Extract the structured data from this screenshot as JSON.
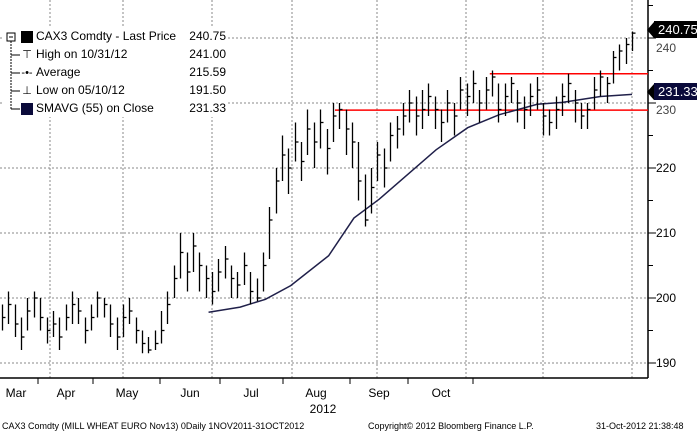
{
  "legend": [
    {
      "label": "CAX3 Comdty - Last Price",
      "value": "240.75",
      "icon": "black-square-icon"
    },
    {
      "label": "High on 10/31/12",
      "value": "241.00",
      "icon": "high-marker-icon"
    },
    {
      "label": "Average",
      "value": "215.59",
      "icon": "average-marker-icon"
    },
    {
      "label": "Low on 05/10/12",
      "value": "191.50",
      "icon": "low-marker-icon"
    },
    {
      "label": "SMAVG (55) on Close",
      "value": "231.33",
      "icon": "navy-square-icon"
    }
  ],
  "badges": {
    "last": "240.75",
    "sma": "231.33"
  },
  "footer": {
    "left": "CAX3 Comdty (MILL WHEAT EURO  Nov13) 0Daily 1NOV2011-31OCT2012",
    "center": "Copyright© 2012 Bloomberg Finance L.P.",
    "right": "31-Oct-2012 21:38:48"
  },
  "chart_data": {
    "type": "ohlc",
    "title": "CAX3 Comdty - Last Price",
    "x_months": [
      "Mar",
      "Apr",
      "May",
      "Jun",
      "Jul",
      "Aug",
      "Sep",
      "Oct"
    ],
    "x_year": "2012",
    "y_ticks": [
      190,
      200,
      210,
      220,
      230,
      240
    ],
    "ylim": [
      187.5,
      245.8
    ],
    "colors": {
      "bars": "#000000",
      "sma": "#20204a",
      "resistance": "#ff0000"
    },
    "bars_low_high_close": [
      [
        195,
        199,
        197
      ],
      [
        196,
        201,
        199
      ],
      [
        194,
        199,
        196
      ],
      [
        192,
        197,
        194
      ],
      [
        195,
        200,
        198
      ],
      [
        197,
        201,
        200
      ],
      [
        195,
        200,
        197
      ],
      [
        193,
        197,
        195
      ],
      [
        194,
        198,
        196
      ],
      [
        192,
        197,
        194
      ],
      [
        195,
        199,
        197
      ],
      [
        196,
        201,
        199
      ],
      [
        196,
        200,
        198
      ],
      [
        193,
        197,
        195
      ],
      [
        195,
        199,
        197
      ],
      [
        197,
        201,
        200
      ],
      [
        197,
        200,
        199
      ],
      [
        194,
        199,
        196
      ],
      [
        192,
        197,
        194
      ],
      [
        194,
        199,
        197
      ],
      [
        196,
        200,
        198
      ],
      [
        193,
        197,
        195
      ],
      [
        191.5,
        195,
        193
      ],
      [
        191.5,
        194,
        192
      ],
      [
        192,
        195,
        193
      ],
      [
        193,
        198,
        195
      ],
      [
        196,
        201,
        199
      ],
      [
        200,
        205,
        203
      ],
      [
        203,
        210,
        207
      ],
      [
        201,
        207,
        204
      ],
      [
        204,
        210,
        208
      ],
      [
        201,
        207,
        205
      ],
      [
        200,
        205,
        203
      ],
      [
        199,
        204,
        201
      ],
      [
        201,
        206,
        204
      ],
      [
        203,
        208,
        206
      ],
      [
        200,
        205,
        203
      ],
      [
        200,
        204,
        202
      ],
      [
        202,
        207,
        205
      ],
      [
        199,
        204,
        201
      ],
      [
        199.5,
        203,
        200
      ],
      [
        201,
        207,
        205
      ],
      [
        206,
        214,
        212
      ],
      [
        213,
        220,
        218
      ],
      [
        218,
        225,
        222
      ],
      [
        216,
        223,
        220
      ],
      [
        221,
        227,
        224
      ],
      [
        218,
        224,
        221
      ],
      [
        222,
        229,
        226
      ],
      [
        220,
        227,
        224
      ],
      [
        223,
        229,
        227
      ],
      [
        219,
        226,
        223
      ],
      [
        224,
        230,
        228
      ],
      [
        226,
        230,
        229
      ],
      [
        222,
        229,
        226
      ],
      [
        220,
        227,
        224
      ],
      [
        215,
        224,
        218
      ],
      [
        211,
        219,
        212
      ],
      [
        213,
        220,
        217
      ],
      [
        218,
        224,
        222
      ],
      [
        217,
        223,
        220
      ],
      [
        221,
        227,
        225
      ],
      [
        223,
        228,
        226
      ],
      [
        225,
        230,
        228
      ],
      [
        227,
        232,
        230
      ],
      [
        225,
        231,
        228
      ],
      [
        226,
        232,
        229
      ],
      [
        228,
        233,
        231
      ],
      [
        226,
        231,
        229
      ],
      [
        224,
        229,
        227
      ],
      [
        227,
        232,
        230
      ],
      [
        225,
        230,
        228
      ],
      [
        229,
        234,
        232
      ],
      [
        228,
        233,
        231
      ],
      [
        230,
        235,
        233
      ],
      [
        227,
        232,
        230
      ],
      [
        229,
        234,
        232
      ],
      [
        231,
        235,
        234
      ],
      [
        227,
        233,
        229
      ],
      [
        228,
        233,
        231
      ],
      [
        230,
        234,
        233
      ],
      [
        227,
        232,
        230
      ],
      [
        226,
        231,
        229
      ],
      [
        228,
        233,
        231
      ],
      [
        229,
        234,
        232
      ],
      [
        225,
        230,
        228
      ],
      [
        225,
        229,
        227
      ],
      [
        226,
        231,
        229
      ],
      [
        228,
        233,
        231
      ],
      [
        230,
        234.5,
        233
      ],
      [
        227,
        232,
        230
      ],
      [
        226,
        230,
        228
      ],
      [
        226,
        230,
        229
      ],
      [
        229,
        234,
        232
      ],
      [
        231,
        235,
        234
      ],
      [
        230,
        234,
        233
      ],
      [
        233,
        238,
        237
      ],
      [
        235,
        239,
        238
      ],
      [
        236,
        240,
        239
      ],
      [
        238,
        241,
        240.75
      ]
    ],
    "sma55": [
      [
        0.33,
        197.8
      ],
      [
        0.38,
        198.6
      ],
      [
        0.42,
        199.8
      ],
      [
        0.46,
        201.9
      ],
      [
        0.52,
        206.5
      ],
      [
        0.56,
        212.3
      ],
      [
        0.6,
        215.2
      ],
      [
        0.69,
        222.8
      ],
      [
        0.74,
        226.2
      ],
      [
        0.79,
        228.2
      ],
      [
        0.85,
        229.8
      ],
      [
        0.89,
        230.1
      ],
      [
        0.95,
        231.0
      ],
      [
        1.0,
        231.33
      ]
    ],
    "resistance_lines": [
      {
        "level": 234.5,
        "from": 0.775
      },
      {
        "level": 228.9,
        "from": 0.53
      }
    ]
  }
}
